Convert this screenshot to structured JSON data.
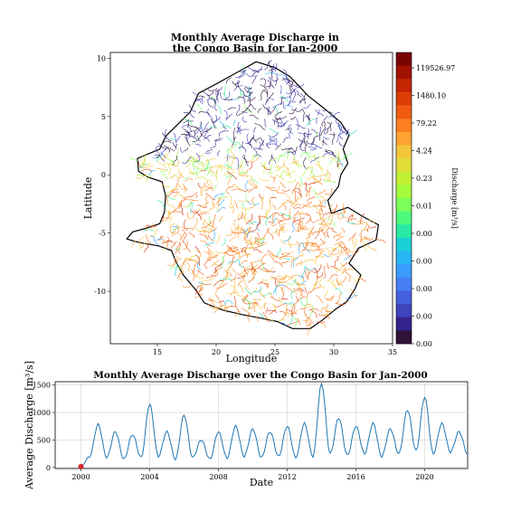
{
  "chart_data": [
    {
      "type": "heatmap",
      "title_line1": "Monthly Average Discharge in",
      "title_line2": "the Congo Basin for Jan-2000",
      "xlabel": "Longitude",
      "ylabel": "Latitude",
      "xlim": [
        11,
        35
      ],
      "ylim": [
        -14.5,
        10.5
      ],
      "xticks": [
        "15",
        "20",
        "25",
        "30",
        "35"
      ],
      "yticks": [
        "10",
        "5",
        "0",
        "-5",
        "-10"
      ],
      "colorbar": {
        "label": "Discharge [m³/s]",
        "ticks": [
          "119526.97",
          "1480.10",
          "79.22",
          "4.24",
          "0.23",
          "0.01",
          "0.00",
          "0.00",
          "0.00",
          "0.00",
          "0.00"
        ],
        "colors": [
          "#7a0403",
          "#a11201",
          "#c42503",
          "#de3d08",
          "#f05b12",
          "#fb7e21",
          "#fea331",
          "#f3c63a",
          "#e1dd37",
          "#c2f034",
          "#a3fd3d",
          "#7bfe58",
          "#4cf97d",
          "#28e9a5",
          "#1bd0d5",
          "#26b6f3",
          "#3b9bfd",
          "#467ef6",
          "#4560de",
          "#3f43bc",
          "#35238c",
          "#30123b"
        ]
      }
    },
    {
      "type": "line",
      "title": "Monthly Average Discharge over the Congo Basin for Jan-2000",
      "xlabel": "Date",
      "ylabel": "Average Discharge [m³/s]",
      "xlim": [
        1998.5,
        2022.5
      ],
      "ylim": [
        -20,
        1560
      ],
      "xticks": [
        "2000",
        "2004",
        "2008",
        "2012",
        "2016",
        "2020"
      ],
      "yticks": [
        "0",
        "500",
        "1000",
        "1500"
      ],
      "grid": true,
      "line_color": "#1f77b4",
      "highlight": {
        "x": 2000.0,
        "y": 15,
        "color": "#d62728"
      },
      "series": [
        {
          "x_start": 2000.0,
          "step": 0.5,
          "values": [
            15,
            200,
            780,
            180,
            650,
            150,
            600,
            180,
            1150,
            200,
            650,
            150,
            950,
            180,
            500,
            150,
            650,
            170,
            750,
            200,
            700,
            180,
            650,
            200,
            750,
            180,
            800,
            200,
            1520,
            250,
            900,
            220,
            750,
            250,
            800,
            200,
            700,
            250,
            1050,
            300,
            1280,
            250,
            800,
            280,
            650,
            250
          ]
        }
      ]
    }
  ]
}
